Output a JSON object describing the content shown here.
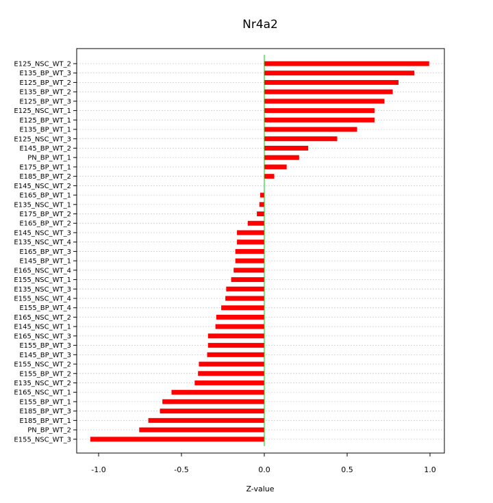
{
  "chart_data": {
    "type": "bar",
    "orientation": "horizontal",
    "title": "Nr4a2",
    "xlabel": "Z-value",
    "ylabel": "",
    "xlim": [
      -1.1,
      1.08
    ],
    "xticks": [
      -1.0,
      -0.5,
      0.0,
      0.5,
      1.0
    ],
    "xtick_labels": [
      "-1.0",
      "-0.5",
      "0.0",
      "0.5",
      "1.0"
    ],
    "grid": true,
    "bar_color": "#ff0000",
    "zero_line_color": "#00cc00",
    "categories": [
      "E125_NSC_WT_2",
      "E135_BP_WT_3",
      "E125_BP_WT_2",
      "E135_BP_WT_2",
      "E125_BP_WT_3",
      "E125_NSC_WT_1",
      "E125_BP_WT_1",
      "E135_BP_WT_1",
      "E125_NSC_WT_3",
      "E145_BP_WT_2",
      "PN_BP_WT_1",
      "E175_BP_WT_1",
      "E185_BP_WT_2",
      "E145_NSC_WT_2",
      "E165_BP_WT_1",
      "E135_NSC_WT_1",
      "E175_BP_WT_2",
      "E165_BP_WT_2",
      "E145_NSC_WT_3",
      "E135_NSC_WT_4",
      "E165_BP_WT_3",
      "E145_BP_WT_1",
      "E165_NSC_WT_4",
      "E155_NSC_WT_1",
      "E135_NSC_WT_3",
      "E155_NSC_WT_4",
      "E155_BP_WT_4",
      "E165_NSC_WT_2",
      "E145_NSC_WT_1",
      "E165_NSC_WT_3",
      "E155_BP_WT_3",
      "E145_BP_WT_3",
      "E155_NSC_WT_2",
      "E155_BP_WT_2",
      "E135_NSC_WT_2",
      "E165_NSC_WT_1",
      "E155_BP_WT_1",
      "E185_BP_WT_3",
      "E185_BP_WT_1",
      "PN_BP_WT_2",
      "E155_NSC_WT_3"
    ],
    "values": [
      0.995,
      0.905,
      0.81,
      0.775,
      0.725,
      0.665,
      0.665,
      0.56,
      0.44,
      0.265,
      0.21,
      0.135,
      0.06,
      0.0,
      -0.025,
      -0.03,
      -0.045,
      -0.1,
      -0.165,
      -0.165,
      -0.175,
      -0.175,
      -0.185,
      -0.2,
      -0.23,
      -0.235,
      -0.26,
      -0.29,
      -0.295,
      -0.34,
      -0.34,
      -0.345,
      -0.395,
      -0.4,
      -0.42,
      -0.56,
      -0.615,
      -0.63,
      -0.7,
      -0.755,
      -1.05
    ]
  }
}
